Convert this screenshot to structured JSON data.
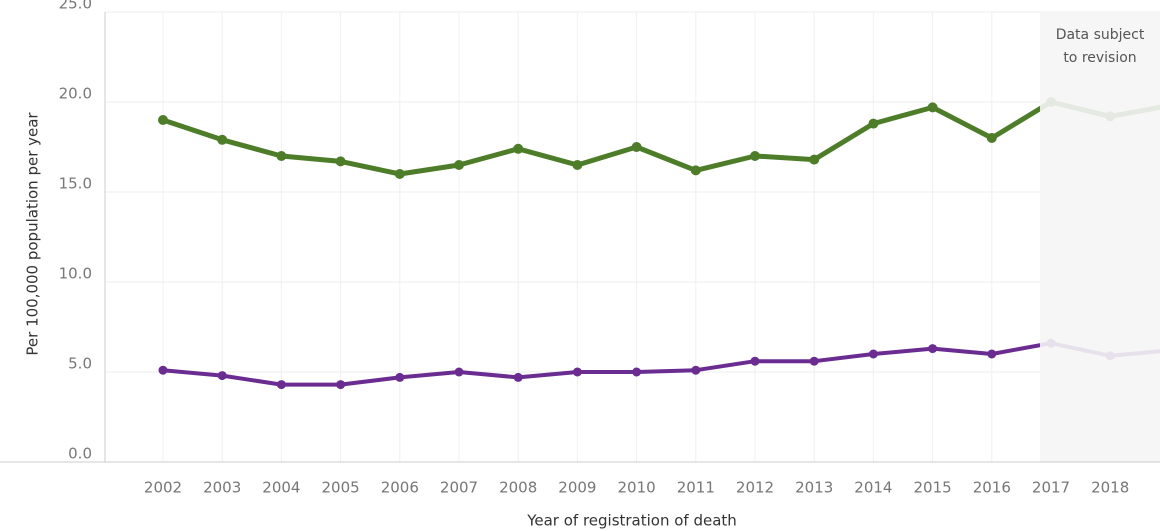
{
  "chart_data": {
    "type": "line",
    "x_label": "Year of registration of death",
    "y_label": "Per 100,000 population per year",
    "annotation": [
      "Data subject",
      "to revision"
    ],
    "categories": [
      "2002",
      "2003",
      "2004",
      "2005",
      "2006",
      "2007",
      "2008",
      "2009",
      "2010",
      "2011",
      "2012",
      "2013",
      "2014",
      "2015",
      "2016",
      "2017",
      "2018",
      null
    ],
    "series": [
      {
        "color": "#4e7d2a",
        "values": [
          19.0,
          17.9,
          17.0,
          16.7,
          16.0,
          16.5,
          17.4,
          16.5,
          17.5,
          16.2,
          17.0,
          16.8,
          18.8,
          19.7,
          18.0,
          20.0,
          19.2,
          19.8
        ]
      },
      {
        "color": "#6a2c91",
        "values": [
          5.1,
          4.8,
          4.3,
          4.3,
          4.7,
          5.0,
          4.7,
          5.0,
          5.0,
          5.1,
          5.6,
          5.6,
          6.0,
          6.3,
          6.0,
          6.6,
          5.9,
          6.2
        ]
      }
    ],
    "ylim": [
      0,
      25
    ],
    "yticks": [
      {
        "value": 0,
        "label": "0.0"
      },
      {
        "value": 5,
        "label": "5.0"
      },
      {
        "value": 10,
        "label": "10.0"
      },
      {
        "value": 15,
        "label": "15.0"
      },
      {
        "value": 20,
        "label": "20.0"
      },
      {
        "value": 25,
        "label": "25.0"
      }
    ],
    "grid": true
  }
}
